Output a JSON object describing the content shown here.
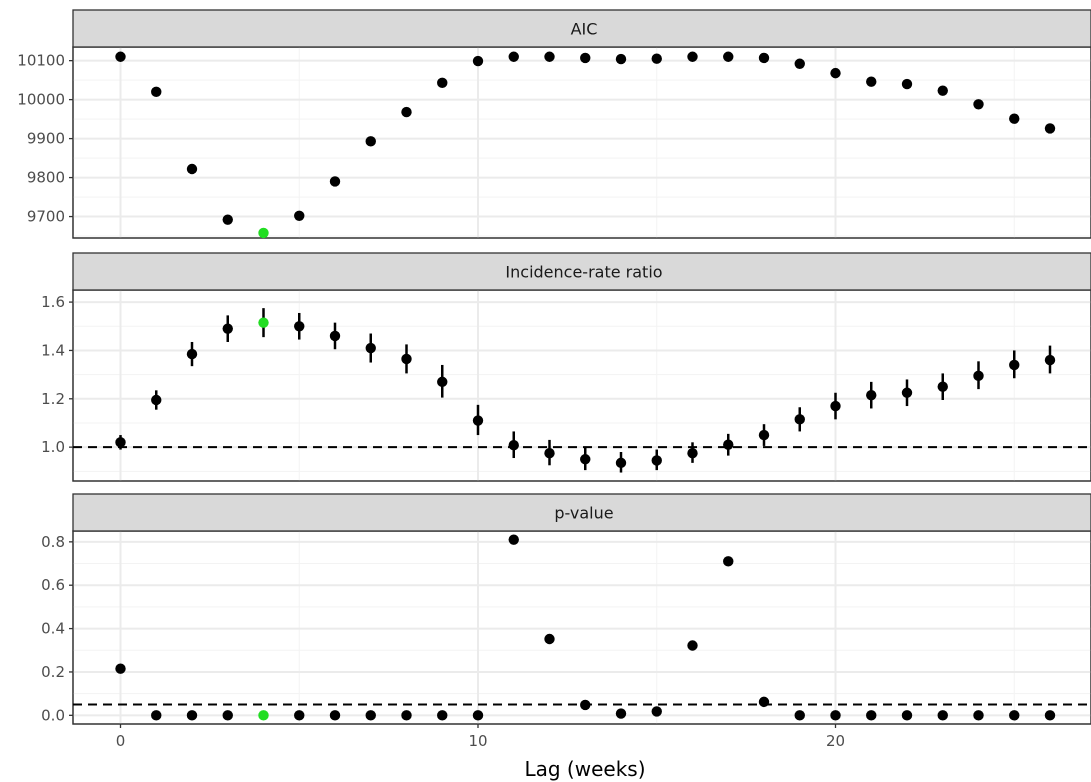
{
  "chart_data": {
    "type": "scatter",
    "xlabel": "Lag (weeks)",
    "x_ticks": [
      0,
      10,
      20
    ],
    "x": [
      0,
      1,
      2,
      3,
      4,
      5,
      6,
      7,
      8,
      9,
      10,
      11,
      12,
      13,
      14,
      15,
      16,
      17,
      18,
      19,
      20,
      21,
      22,
      23,
      24,
      25,
      26
    ],
    "highlight_lag": 4,
    "colors": {
      "point": "#000000",
      "highlight": "#22dd22",
      "strip": "#d9d9d9"
    },
    "panels": [
      {
        "title": "AIC",
        "ylim": [
          9645,
          10135
        ],
        "y_ticks": [
          9700,
          9800,
          9900,
          10000,
          10100
        ],
        "y": [
          10110,
          10020,
          9822,
          9692,
          9658,
          9702,
          9790,
          9893,
          9968,
          10043,
          10099,
          10110,
          10110,
          10107,
          10104,
          10105,
          10110,
          10110,
          10107,
          10092,
          10068,
          10046,
          10040,
          10023,
          9988,
          9951,
          9926
        ]
      },
      {
        "title": "Incidence-rate ratio",
        "ylim": [
          0.86,
          1.65
        ],
        "y_ticks": [
          1.0,
          1.2,
          1.4,
          1.6
        ],
        "reference_line": 1.0,
        "y": [
          1.02,
          1.195,
          1.385,
          1.49,
          1.515,
          1.5,
          1.46,
          1.41,
          1.365,
          1.27,
          1.11,
          1.008,
          0.975,
          0.95,
          0.935,
          0.945,
          0.975,
          1.01,
          1.05,
          1.115,
          1.17,
          1.215,
          1.225,
          1.25,
          1.295,
          1.34,
          1.36
        ],
        "lower": [
          0.99,
          1.155,
          1.335,
          1.435,
          1.455,
          1.445,
          1.405,
          1.35,
          1.305,
          1.205,
          1.05,
          0.955,
          0.925,
          0.905,
          0.895,
          0.905,
          0.935,
          0.965,
          1.005,
          1.065,
          1.115,
          1.16,
          1.17,
          1.195,
          1.24,
          1.285,
          1.305
        ],
        "upper": [
          1.05,
          1.235,
          1.435,
          1.545,
          1.575,
          1.555,
          1.515,
          1.47,
          1.425,
          1.34,
          1.175,
          1.065,
          1.03,
          1.0,
          0.98,
          0.99,
          1.02,
          1.055,
          1.095,
          1.165,
          1.225,
          1.27,
          1.28,
          1.305,
          1.355,
          1.4,
          1.42
        ]
      },
      {
        "title": "p-value",
        "ylim": [
          -0.04,
          0.85
        ],
        "y_ticks": [
          0.0,
          0.2,
          0.4,
          0.6,
          0.8
        ],
        "reference_line": 0.05,
        "y": [
          0.215,
          0.0,
          0.0,
          0.0,
          0.0,
          0.0,
          0.0,
          0.0,
          0.0,
          0.0,
          0.0,
          0.81,
          0.352,
          0.048,
          0.008,
          0.018,
          0.322,
          0.71,
          0.062,
          0.0,
          0.0,
          0.0,
          0.0,
          0.0,
          0.0,
          0.0,
          0.0
        ]
      }
    ]
  }
}
